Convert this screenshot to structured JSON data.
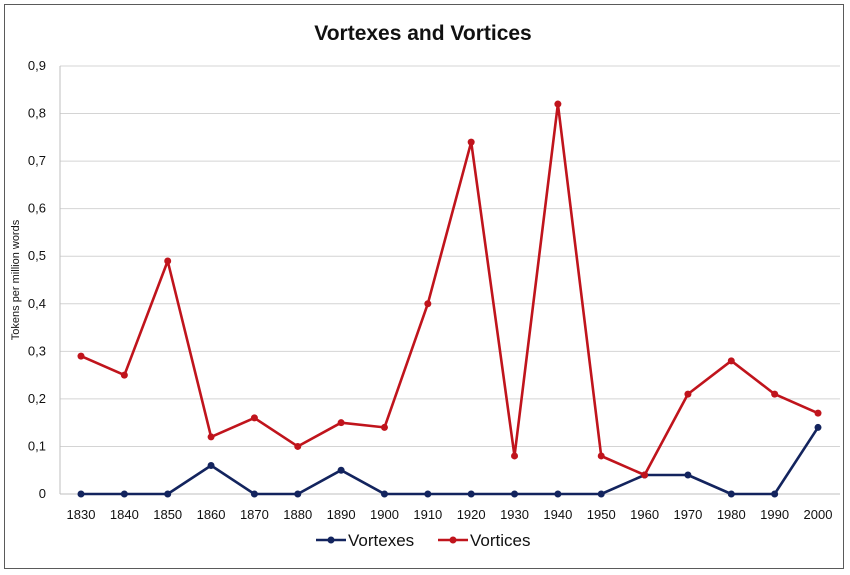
{
  "chart_data": {
    "type": "line",
    "title": "Vortexes and Vortices",
    "xlabel": "",
    "ylabel": "Tokens per million words",
    "x": [
      "1830",
      "1840",
      "1850",
      "1860",
      "1870",
      "1880",
      "1890",
      "1900",
      "1910",
      "1920",
      "1930",
      "1940",
      "1950",
      "1960",
      "1970",
      "1980",
      "1990",
      "2000"
    ],
    "ylim": [
      0,
      0.9
    ],
    "yticks": [
      "0",
      "0,1",
      "0,2",
      "0,3",
      "0,4",
      "0,5",
      "0,6",
      "0,7",
      "0,8",
      "0,9"
    ],
    "grid": true,
    "legend": "bottom",
    "series": [
      {
        "name": "Vortexes",
        "color": "#13245e",
        "values": [
          0,
          0,
          0,
          0.06,
          0,
          0,
          0.05,
          0,
          0,
          0,
          0,
          0,
          0,
          0.04,
          0.04,
          0,
          0,
          0.14
        ]
      },
      {
        "name": "Vortices",
        "color": "#c0141c",
        "values": [
          0.29,
          0.25,
          0.49,
          0.12,
          0.16,
          0.1,
          0.15,
          0.14,
          0.4,
          0.74,
          0.08,
          0.82,
          0.08,
          0.04,
          0.21,
          0.28,
          0.21,
          0.17
        ]
      }
    ]
  }
}
